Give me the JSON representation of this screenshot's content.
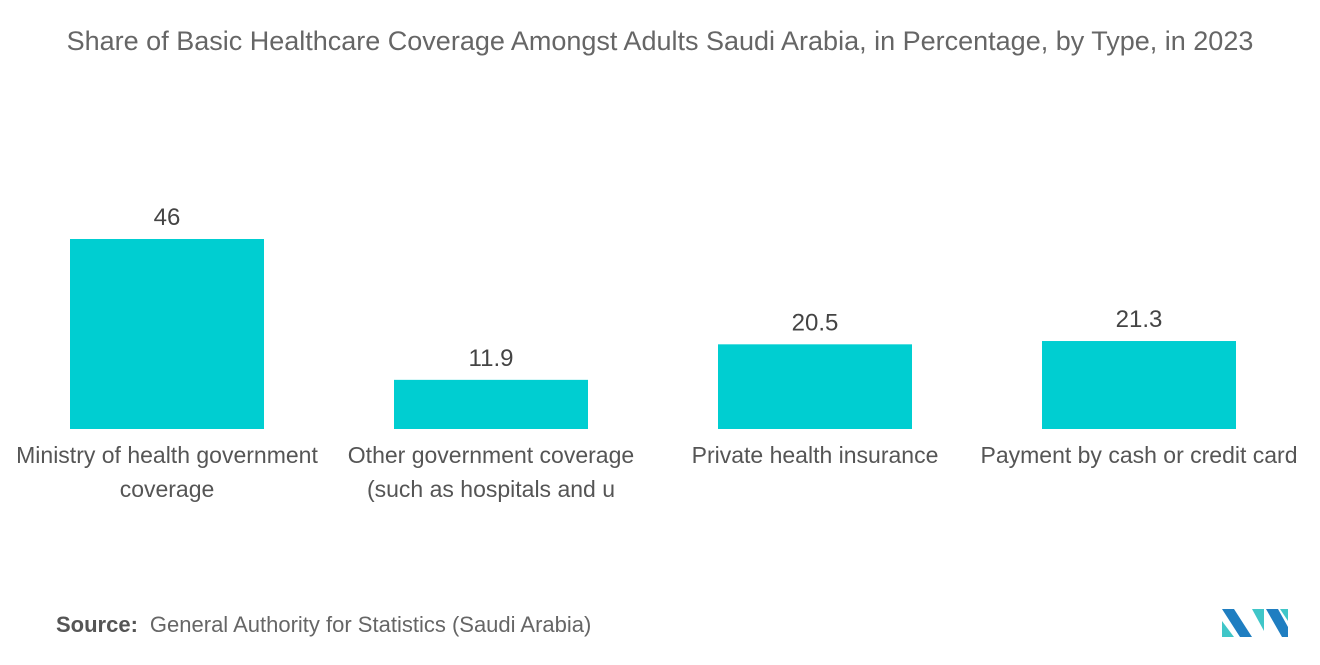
{
  "chart_data": {
    "type": "bar",
    "title": "Share of Basic Healthcare Coverage Amongst Adults Saudi Arabia, in Percentage, by Type, in 2023",
    "categories": [
      "Ministry of health government coverage",
      "Other government coverage (such as hospitals and u",
      "Private health insurance",
      "Payment by cash or credit card"
    ],
    "values": [
      46,
      11.9,
      20.5,
      21.3
    ],
    "value_labels": [
      "46",
      "11.9",
      "20.5",
      "21.3"
    ],
    "xlabel": "",
    "ylabel": "",
    "ylim": [
      0,
      50
    ],
    "grid": false,
    "bar_color": "#00CED1"
  },
  "source": {
    "label": "Source:",
    "text": "General Authority for Statistics (Saudi Arabia)"
  },
  "logo": {
    "text": "MN",
    "colors": [
      "#1F7EC1",
      "#40C6C8"
    ]
  }
}
